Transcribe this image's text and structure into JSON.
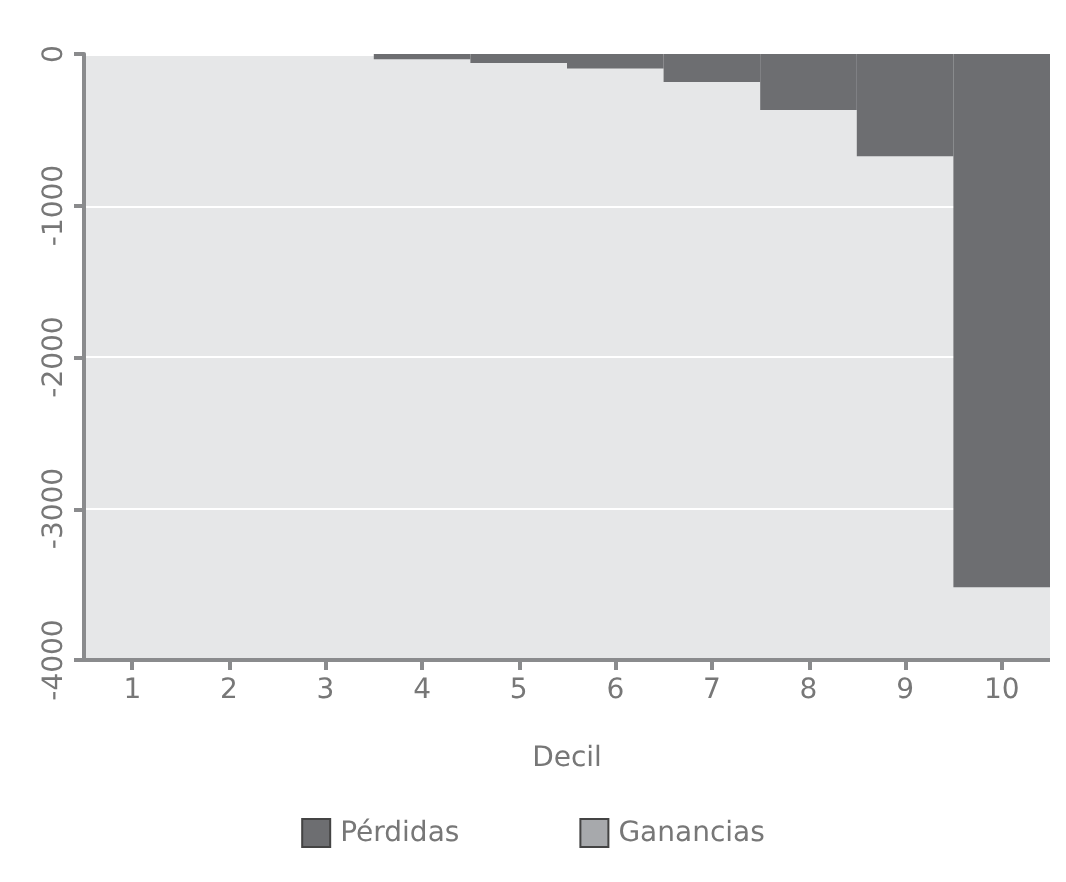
{
  "chart_data": {
    "type": "bar",
    "xlabel": "Decil",
    "categories": [
      "1",
      "2",
      "3",
      "4",
      "5",
      "6",
      "7",
      "8",
      "9",
      "10"
    ],
    "stacked": true,
    "series": [
      {
        "name": "Pérdidas",
        "color": "#6d6e71",
        "values": [
          0,
          0,
          0,
          -35,
          -60,
          -95,
          -185,
          -370,
          -675,
          -3520
        ]
      },
      {
        "name": "Ganancias",
        "color": "#a7a9ac",
        "values": [
          0,
          0,
          0,
          0,
          0,
          0,
          0,
          0,
          0,
          0
        ]
      }
    ],
    "ylim": [
      -4000,
      0
    ],
    "yticks": [
      -4000,
      -3000,
      -2000,
      -1000,
      0
    ],
    "grid": "y",
    "legend": "bottom"
  }
}
